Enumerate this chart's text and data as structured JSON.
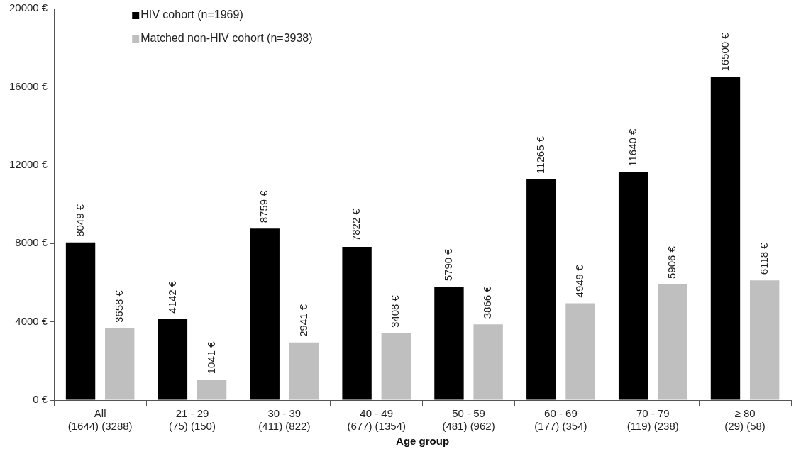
{
  "chart_data": {
    "type": "bar",
    "xlabel": "Age group",
    "categories": [
      "All\n(1644) (3288)",
      "21 - 29\n(75) (150)",
      "30 - 39\n(411) (822)",
      "40 - 49\n(677) (1354)",
      "50 - 59\n(481) (962)",
      "60 - 69\n(177) (354)",
      "70 - 79\n(119) (238)",
      "≥ 80\n(29) (58)"
    ],
    "series": [
      {
        "name": "HIV cohort (n=1969)",
        "color": "#000000",
        "values": [
          8049,
          4142,
          8759,
          7822,
          5790,
          11265,
          11640,
          16500
        ],
        "value_labels": [
          "8049 €",
          "4142 €",
          "8759 €",
          "7822 €",
          "5790 €",
          "11265 €",
          "11640 €",
          "16500 €"
        ]
      },
      {
        "name": "Matched non-HIV cohort (n=3938)",
        "color": "#bfbfbf",
        "values": [
          3658,
          1041,
          2941,
          3408,
          3866,
          4949,
          5906,
          6118
        ],
        "value_labels": [
          "3658 €",
          "1041 €",
          "2941 €",
          "3408 €",
          "3866 €",
          "4949 €",
          "5906 €",
          "6118 €"
        ]
      }
    ],
    "ylim": [
      0,
      20000
    ],
    "yticks": [
      {
        "value": 0,
        "label": "0 €"
      },
      {
        "value": 4000,
        "label": "4000 €"
      },
      {
        "value": 8000,
        "label": "8000 €"
      },
      {
        "value": 12000,
        "label": "12000 €"
      },
      {
        "value": 16000,
        "label": "16000 €"
      },
      {
        "value": 20000,
        "label": "20000 €"
      }
    ],
    "grid": false,
    "legend": "top left"
  }
}
